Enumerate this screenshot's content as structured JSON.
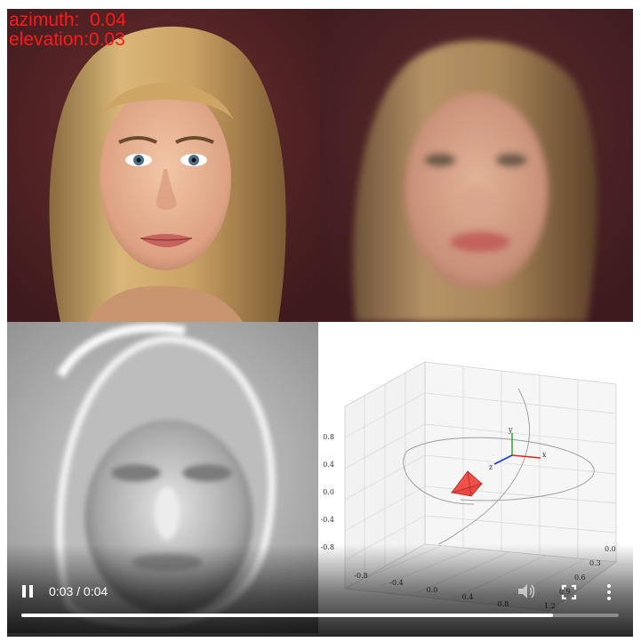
{
  "overlay": {
    "azimuth_text": "azimuth:  0.04",
    "elevation_text": "elevation:0.03"
  },
  "plot": {
    "z_ticks": [
      "0.8",
      "0.4",
      "0.0",
      "-0.4",
      "-0.8"
    ],
    "x_ticks": [
      "-0.8",
      "-0.4",
      "0.0",
      "0.4",
      "0.8"
    ],
    "y_ticks": [
      "0.0",
      "0.3",
      "0.6",
      "0.9",
      "1.2"
    ],
    "axis_labels": {
      "x": "x",
      "y": "y",
      "z": "z"
    },
    "colors": {
      "x_axis": "#e0241b",
      "y_axis": "#1fa31f",
      "z_axis": "#1c3fd6",
      "camera": "#f0504a"
    }
  },
  "video": {
    "time_text": "0:03 / 0:04",
    "progress": 0.89,
    "icons": {
      "pause": "pause-icon",
      "volume": "volume-icon",
      "fullscreen": "fullscreen-icon",
      "more": "more-options-icon"
    }
  }
}
